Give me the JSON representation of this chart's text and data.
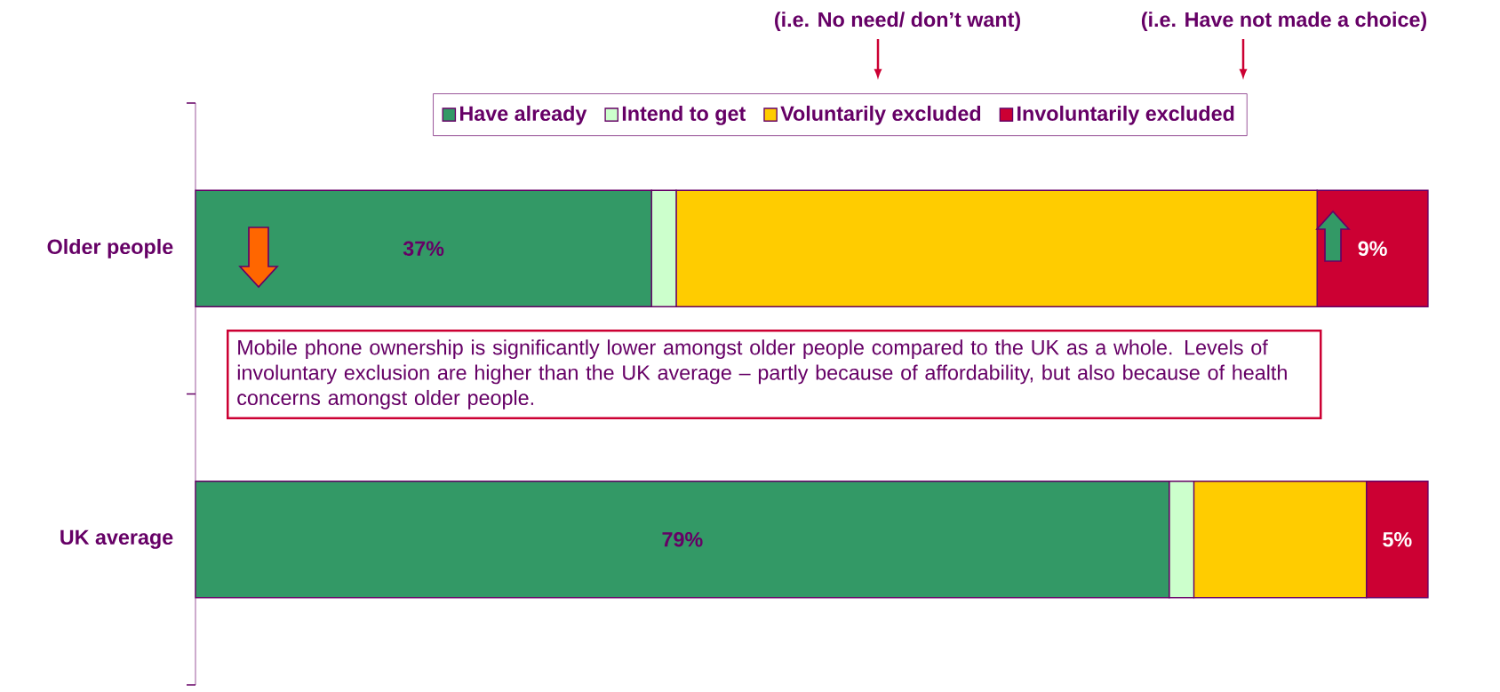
{
  "chart_data": {
    "type": "bar",
    "orientation": "horizontal",
    "stacked": true,
    "categories": [
      "Older people",
      "UK average"
    ],
    "series": [
      {
        "name": "Have already",
        "color": "#339966",
        "values": [
          37,
          79
        ],
        "value_labels": [
          "37%",
          "79%"
        ]
      },
      {
        "name": "Intend to get",
        "color": "#ccffcc",
        "values": [
          2,
          2
        ]
      },
      {
        "name": "Voluntarily excluded",
        "color": "#ffcc00",
        "values": [
          52,
          14
        ]
      },
      {
        "name": "Involuntarily excluded",
        "color": "#cc0033",
        "values": [
          9,
          5
        ],
        "value_labels": [
          "9%",
          "5%"
        ]
      }
    ],
    "xlim": [
      0,
      100
    ],
    "tick_labels": "y",
    "legend": "top",
    "annotations": [
      "(i.e. No need/ don’t want)",
      "(i.e. Have not made a choice)",
      "Mobile phone ownership is significantly lower amongst older people compared to the UK as a whole. Levels of involuntary exclusion are higher than the UK average – partly because of affordability, but also because of health concerns amongst older people."
    ]
  }
}
